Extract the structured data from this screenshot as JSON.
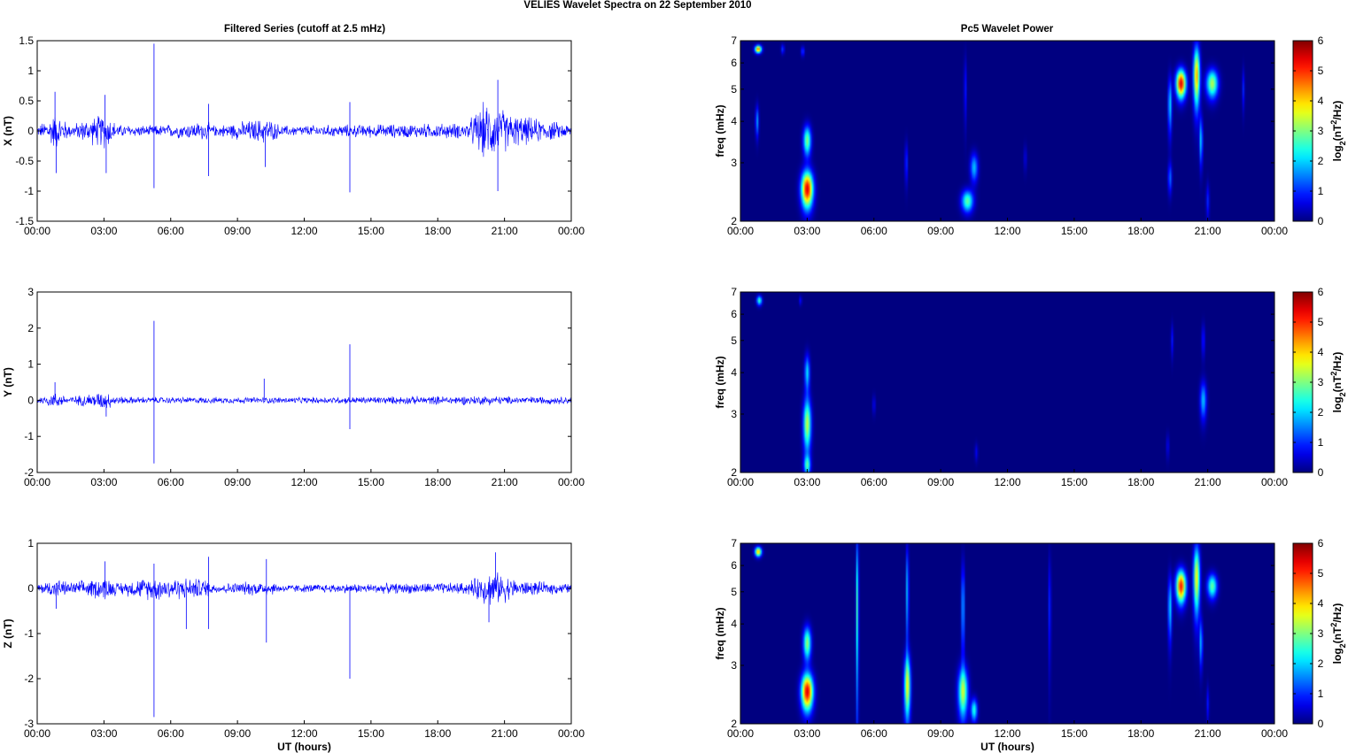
{
  "figure": {
    "title": "VELIES Wavelet Spectra on 22 September 2010",
    "left_column_title": "Filtered Series (cutoff at 2.5 mHz)",
    "right_column_title": "Pc5 Wavelet Power",
    "x_axis_label": "UT (hours)"
  },
  "colors": {
    "series_line": "#0000ff",
    "background": "#ffffff",
    "axes": "#000000",
    "colormap": "jet"
  },
  "chart_data": [
    {
      "type": "line",
      "title": "Filtered Series (cutoff at 2.5 mHz)",
      "xlabel": "",
      "ylabel": "X (nT)",
      "xlim": [
        0,
        24
      ],
      "ylim": [
        -1.5,
        1.5
      ],
      "xticks": [
        "00:00",
        "03:00",
        "06:00",
        "09:00",
        "12:00",
        "15:00",
        "18:00",
        "21:00",
        "00:00"
      ],
      "yticks": [
        -1.5,
        -1,
        -0.5,
        0,
        0.5,
        1,
        1.5
      ],
      "ytick_labels": [
        "-1.5",
        "-1",
        "-0.5",
        "0",
        "0.5",
        "1",
        "1.5"
      ],
      "noise_envelope": [
        [
          0,
          0.08
        ],
        [
          0.8,
          0.35
        ],
        [
          1.5,
          0.12
        ],
        [
          3.1,
          0.35
        ],
        [
          3.6,
          0.12
        ],
        [
          5.2,
          0.1
        ],
        [
          7.6,
          0.18
        ],
        [
          8.0,
          0.1
        ],
        [
          10.3,
          0.25
        ],
        [
          11.0,
          0.1
        ],
        [
          14.0,
          0.12
        ],
        [
          19.3,
          0.15
        ],
        [
          20.1,
          0.55
        ],
        [
          20.8,
          0.45
        ],
        [
          21.5,
          0.3
        ],
        [
          24,
          0.12
        ]
      ],
      "spikes": [
        {
          "x": 5.25,
          "y": 1.45
        },
        {
          "x": 5.25,
          "y": -0.95
        },
        {
          "x": 14.05,
          "y": 0.48
        },
        {
          "x": 14.05,
          "y": -1.02
        },
        {
          "x": 20.7,
          "y": 0.85
        },
        {
          "x": 20.7,
          "y": -1.0
        },
        {
          "x": 3.05,
          "y": 0.6
        },
        {
          "x": 3.1,
          "y": -0.7
        },
        {
          "x": 0.8,
          "y": 0.65
        },
        {
          "x": 0.85,
          "y": -0.7
        },
        {
          "x": 7.7,
          "y": 0.45
        },
        {
          "x": 7.7,
          "y": -0.75
        },
        {
          "x": 10.25,
          "y": -0.6
        }
      ],
      "grid": false
    },
    {
      "type": "line",
      "xlabel": "",
      "ylabel": "Y (nT)",
      "xlim": [
        0,
        24
      ],
      "ylim": [
        -2,
        3
      ],
      "xticks": [
        "00:00",
        "03:00",
        "06:00",
        "09:00",
        "12:00",
        "15:00",
        "18:00",
        "21:00",
        "00:00"
      ],
      "yticks": [
        -2,
        -1,
        0,
        1,
        2,
        3
      ],
      "ytick_labels": [
        "-2",
        "-1",
        "0",
        "1",
        "2",
        "3"
      ],
      "noise_envelope": [
        [
          0,
          0.1
        ],
        [
          0.8,
          0.25
        ],
        [
          1.5,
          0.12
        ],
        [
          3.1,
          0.3
        ],
        [
          3.6,
          0.12
        ],
        [
          6,
          0.1
        ],
        [
          12,
          0.1
        ],
        [
          20.5,
          0.15
        ],
        [
          21,
          0.12
        ],
        [
          24,
          0.12
        ]
      ],
      "spikes": [
        {
          "x": 5.25,
          "y": 2.2
        },
        {
          "x": 5.25,
          "y": -1.75
        },
        {
          "x": 14.05,
          "y": 1.55
        },
        {
          "x": 14.05,
          "y": -0.8
        },
        {
          "x": 10.2,
          "y": 0.6
        },
        {
          "x": 0.8,
          "y": 0.5
        },
        {
          "x": 3.1,
          "y": -0.45
        }
      ],
      "grid": false
    },
    {
      "type": "line",
      "xlabel": "UT (hours)",
      "ylabel": "Z (nT)",
      "xlim": [
        0,
        24
      ],
      "ylim": [
        -3,
        1
      ],
      "xticks": [
        "00:00",
        "03:00",
        "06:00",
        "09:00",
        "12:00",
        "15:00",
        "18:00",
        "21:00",
        "00:00"
      ],
      "yticks": [
        -3,
        -2,
        -1,
        0,
        1
      ],
      "ytick_labels": [
        "-3",
        "-2",
        "-1",
        "0",
        "1"
      ],
      "noise_envelope": [
        [
          0,
          0.1
        ],
        [
          0.8,
          0.25
        ],
        [
          1.5,
          0.15
        ],
        [
          3.1,
          0.3
        ],
        [
          3.6,
          0.15
        ],
        [
          5.2,
          0.3
        ],
        [
          7.5,
          0.25
        ],
        [
          8.0,
          0.12
        ],
        [
          10.3,
          0.2
        ],
        [
          11,
          0.1
        ],
        [
          19.3,
          0.15
        ],
        [
          20.3,
          0.45
        ],
        [
          21.0,
          0.35
        ],
        [
          21.6,
          0.2
        ],
        [
          24,
          0.12
        ]
      ],
      "spikes": [
        {
          "x": 5.25,
          "y": -2.85
        },
        {
          "x": 5.25,
          "y": 0.55
        },
        {
          "x": 10.3,
          "y": -1.2
        },
        {
          "x": 10.3,
          "y": 0.65
        },
        {
          "x": 14.05,
          "y": -2.0
        },
        {
          "x": 7.7,
          "y": 0.7
        },
        {
          "x": 7.7,
          "y": -0.9
        },
        {
          "x": 3.05,
          "y": 0.6
        },
        {
          "x": 20.6,
          "y": 0.8
        },
        {
          "x": 20.3,
          "y": -0.75
        },
        {
          "x": 0.85,
          "y": -0.45
        },
        {
          "x": 6.7,
          "y": -0.9
        }
      ],
      "grid": false
    },
    {
      "type": "heatmap",
      "title": "Pc5 Wavelet Power",
      "xlabel": "",
      "ylabel": "freq (mHz)",
      "xlim": [
        0,
        24
      ],
      "ylim": [
        2,
        7
      ],
      "yscale": "log",
      "xticks": [
        "00:00",
        "03:00",
        "06:00",
        "09:00",
        "12:00",
        "15:00",
        "18:00",
        "21:00",
        "00:00"
      ],
      "yticks": [
        2,
        3,
        4,
        5,
        6,
        7
      ],
      "colorbar": {
        "label": "log2(nT2/Hz)",
        "range": [
          0,
          6
        ],
        "ticks": [
          0,
          1,
          2,
          3,
          4,
          5,
          6
        ]
      },
      "blobs": [
        {
          "x": 3.0,
          "y": 2.5,
          "sx": 0.18,
          "sy": 0.22,
          "amp": 5.8
        },
        {
          "x": 3.0,
          "y": 3.5,
          "sx": 0.12,
          "sy": 0.25,
          "amp": 3.2
        },
        {
          "x": 0.8,
          "y": 6.6,
          "sx": 0.1,
          "sy": 0.12,
          "amp": 5.0
        },
        {
          "x": 0.75,
          "y": 4.0,
          "sx": 0.05,
          "sy": 0.3,
          "amp": 1.8
        },
        {
          "x": 1.9,
          "y": 6.6,
          "sx": 0.05,
          "sy": 0.15,
          "amp": 1.2
        },
        {
          "x": 2.8,
          "y": 6.5,
          "sx": 0.05,
          "sy": 0.15,
          "amp": 1.3
        },
        {
          "x": 7.45,
          "y": 3.0,
          "sx": 0.04,
          "sy": 0.3,
          "amp": 1.3
        },
        {
          "x": 10.2,
          "y": 2.3,
          "sx": 0.18,
          "sy": 0.12,
          "amp": 3.0
        },
        {
          "x": 10.5,
          "y": 2.9,
          "sx": 0.12,
          "sy": 0.2,
          "amp": 2.0
        },
        {
          "x": 10.1,
          "y": 5.0,
          "sx": 0.04,
          "sy": 0.8,
          "amp": 1.0
        },
        {
          "x": 19.8,
          "y": 5.2,
          "sx": 0.15,
          "sy": 0.35,
          "amp": 5.8
        },
        {
          "x": 20.5,
          "y": 5.5,
          "sx": 0.1,
          "sy": 0.8,
          "amp": 4.5
        },
        {
          "x": 19.3,
          "y": 4.5,
          "sx": 0.06,
          "sy": 0.6,
          "amp": 2.2
        },
        {
          "x": 19.3,
          "y": 2.7,
          "sx": 0.06,
          "sy": 0.2,
          "amp": 1.5
        },
        {
          "x": 21.2,
          "y": 5.2,
          "sx": 0.18,
          "sy": 0.35,
          "amp": 3.5
        },
        {
          "x": 20.7,
          "y": 3.5,
          "sx": 0.05,
          "sy": 0.4,
          "amp": 2.2
        },
        {
          "x": 21.0,
          "y": 2.3,
          "sx": 0.05,
          "sy": 0.2,
          "amp": 1.0
        },
        {
          "x": 22.6,
          "y": 5.0,
          "sx": 0.04,
          "sy": 0.5,
          "amp": 1.0
        },
        {
          "x": 12.8,
          "y": 3.1,
          "sx": 0.05,
          "sy": 0.2,
          "amp": 0.6
        }
      ]
    },
    {
      "type": "heatmap",
      "xlabel": "",
      "ylabel": "freq (mHz)",
      "xlim": [
        0,
        24
      ],
      "ylim": [
        2,
        7
      ],
      "yscale": "log",
      "xticks": [
        "00:00",
        "03:00",
        "06:00",
        "09:00",
        "12:00",
        "15:00",
        "18:00",
        "21:00",
        "00:00"
      ],
      "yticks": [
        2,
        3,
        4,
        5,
        6,
        7
      ],
      "colorbar": {
        "label": "log2(nT2/Hz)",
        "range": [
          0,
          6
        ],
        "ticks": [
          0,
          1,
          2,
          3,
          4,
          5,
          6
        ]
      },
      "blobs": [
        {
          "x": 3.0,
          "y": 2.8,
          "sx": 0.12,
          "sy": 0.35,
          "amp": 3.6
        },
        {
          "x": 3.0,
          "y": 4.0,
          "sx": 0.08,
          "sy": 0.35,
          "amp": 2.2
        },
        {
          "x": 3.0,
          "y": 2.1,
          "sx": 0.1,
          "sy": 0.1,
          "amp": 2.5
        },
        {
          "x": 0.85,
          "y": 6.6,
          "sx": 0.08,
          "sy": 0.15,
          "amp": 2.8
        },
        {
          "x": 2.7,
          "y": 6.6,
          "sx": 0.04,
          "sy": 0.15,
          "amp": 0.9
        },
        {
          "x": 6.0,
          "y": 3.2,
          "sx": 0.04,
          "sy": 0.15,
          "amp": 0.8
        },
        {
          "x": 10.6,
          "y": 2.3,
          "sx": 0.05,
          "sy": 0.1,
          "amp": 0.7
        },
        {
          "x": 20.8,
          "y": 3.3,
          "sx": 0.1,
          "sy": 0.3,
          "amp": 2.0
        },
        {
          "x": 20.8,
          "y": 5.0,
          "sx": 0.05,
          "sy": 0.4,
          "amp": 1.0
        },
        {
          "x": 19.4,
          "y": 5.0,
          "sx": 0.04,
          "sy": 0.4,
          "amp": 0.9
        },
        {
          "x": 19.2,
          "y": 2.4,
          "sx": 0.04,
          "sy": 0.15,
          "amp": 0.8
        }
      ]
    },
    {
      "type": "heatmap",
      "xlabel": "UT (hours)",
      "ylabel": "freq (mHz)",
      "xlim": [
        0,
        24
      ],
      "ylim": [
        2,
        7
      ],
      "yscale": "log",
      "xticks": [
        "00:00",
        "03:00",
        "06:00",
        "09:00",
        "12:00",
        "15:00",
        "18:00",
        "21:00",
        "00:00"
      ],
      "yticks": [
        2,
        3,
        4,
        5,
        6,
        7
      ],
      "colorbar": {
        "label": "log2(nT2/Hz)",
        "range": [
          0,
          6
        ],
        "ticks": [
          0,
          1,
          2,
          3,
          4,
          5,
          6
        ]
      },
      "blobs": [
        {
          "x": 3.0,
          "y": 2.5,
          "sx": 0.18,
          "sy": 0.22,
          "amp": 5.8
        },
        {
          "x": 3.0,
          "y": 3.5,
          "sx": 0.12,
          "sy": 0.28,
          "amp": 3.3
        },
        {
          "x": 0.8,
          "y": 6.6,
          "sx": 0.1,
          "sy": 0.15,
          "amp": 4.5
        },
        {
          "x": 5.25,
          "y": 4.5,
          "sx": 0.04,
          "sy": 1.8,
          "amp": 2.8
        },
        {
          "x": 7.5,
          "y": 2.6,
          "sx": 0.1,
          "sy": 0.4,
          "amp": 3.8
        },
        {
          "x": 7.5,
          "y": 5.0,
          "sx": 0.04,
          "sy": 1.2,
          "amp": 2.2
        },
        {
          "x": 10.0,
          "y": 2.5,
          "sx": 0.15,
          "sy": 0.3,
          "amp": 3.5
        },
        {
          "x": 10.5,
          "y": 2.2,
          "sx": 0.1,
          "sy": 0.12,
          "amp": 2.6
        },
        {
          "x": 10.0,
          "y": 4.5,
          "sx": 0.05,
          "sy": 1.0,
          "amp": 2.0
        },
        {
          "x": 13.9,
          "y": 4.5,
          "sx": 0.04,
          "sy": 1.2,
          "amp": 1.1
        },
        {
          "x": 19.8,
          "y": 5.2,
          "sx": 0.15,
          "sy": 0.4,
          "amp": 5.5
        },
        {
          "x": 20.5,
          "y": 5.5,
          "sx": 0.1,
          "sy": 0.9,
          "amp": 4.0
        },
        {
          "x": 19.3,
          "y": 4.5,
          "sx": 0.06,
          "sy": 0.7,
          "amp": 2.2
        },
        {
          "x": 21.2,
          "y": 5.2,
          "sx": 0.15,
          "sy": 0.3,
          "amp": 3.0
        },
        {
          "x": 20.7,
          "y": 3.5,
          "sx": 0.05,
          "sy": 0.4,
          "amp": 2.0
        },
        {
          "x": 21.0,
          "y": 2.3,
          "sx": 0.04,
          "sy": 0.2,
          "amp": 0.9
        }
      ]
    }
  ]
}
